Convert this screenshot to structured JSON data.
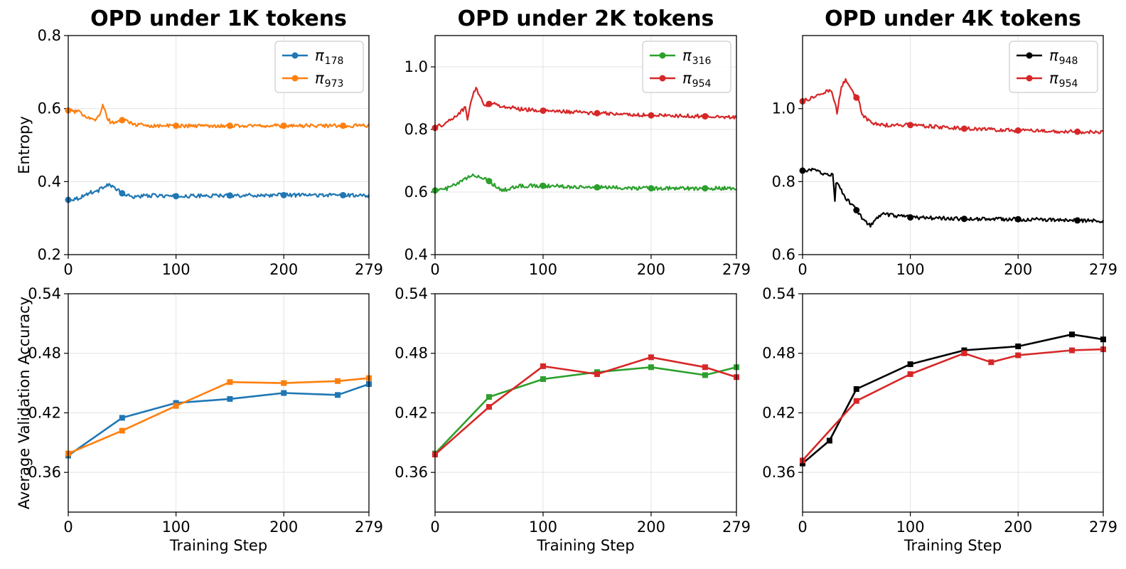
{
  "chart_data": [
    {
      "type": "line",
      "title": "OPD under 1K tokens",
      "xlabel": "",
      "ylabel": "Entropy",
      "xlim": [
        0,
        279
      ],
      "ylim": [
        0.2,
        0.8
      ],
      "xticks": [
        0,
        100,
        200,
        279
      ],
      "yticks": [
        "0.2",
        "0.4",
        "0.6",
        "0.8"
      ],
      "grid": true,
      "legend": "top-right",
      "noise": 0.005,
      "series": [
        {
          "name": "π",
          "sub": "178",
          "color": "#1f77b4",
          "x": [
            0,
            10,
            20,
            28,
            34,
            38,
            44,
            50,
            58,
            65,
            80,
            100,
            150,
            200,
            250,
            279
          ],
          "y": [
            0.35,
            0.355,
            0.37,
            0.375,
            0.39,
            0.392,
            0.38,
            0.368,
            0.358,
            0.36,
            0.362,
            0.36,
            0.362,
            0.363,
            0.363,
            0.362
          ],
          "markers_x": [
            0,
            50,
            100,
            150,
            200,
            255
          ]
        },
        {
          "name": "π",
          "sub": "973",
          "color": "#ff7f0e",
          "x": [
            0,
            10,
            20,
            26,
            30,
            32,
            36,
            40,
            46,
            52,
            58,
            65,
            80,
            100,
            150,
            200,
            250,
            279
          ],
          "y": [
            0.595,
            0.59,
            0.575,
            0.57,
            0.585,
            0.612,
            0.575,
            0.56,
            0.565,
            0.57,
            0.56,
            0.555,
            0.553,
            0.553,
            0.553,
            0.553,
            0.553,
            0.553
          ],
          "markers_x": [
            0,
            50,
            100,
            150,
            200,
            255
          ]
        }
      ]
    },
    {
      "type": "line",
      "title": "OPD under 2K tokens",
      "xlabel": "",
      "ylabel": "",
      "xlim": [
        0,
        279
      ],
      "ylim": [
        0.4,
        1.1
      ],
      "xticks": [
        0,
        100,
        200,
        279
      ],
      "yticks": [
        "0.4",
        "0.6",
        "0.8",
        "1.0"
      ],
      "grid": true,
      "legend": "top-right",
      "noise": 0.006,
      "series": [
        {
          "name": "π",
          "sub": "316",
          "color": "#2ca02c",
          "x": [
            0,
            10,
            20,
            30,
            36,
            42,
            50,
            56,
            62,
            68,
            80,
            100,
            150,
            200,
            250,
            279
          ],
          "y": [
            0.605,
            0.61,
            0.625,
            0.645,
            0.655,
            0.648,
            0.635,
            0.62,
            0.605,
            0.61,
            0.62,
            0.62,
            0.615,
            0.612,
            0.612,
            0.612
          ],
          "markers_x": [
            0,
            50,
            100,
            150,
            200,
            250
          ]
        },
        {
          "name": "π",
          "sub": "954",
          "color": "#d62728",
          "x": [
            0,
            10,
            20,
            28,
            30,
            34,
            38,
            42,
            46,
            52,
            60,
            80,
            100,
            150,
            200,
            250,
            279
          ],
          "y": [
            0.805,
            0.82,
            0.845,
            0.87,
            0.83,
            0.9,
            0.935,
            0.9,
            0.875,
            0.885,
            0.875,
            0.865,
            0.86,
            0.852,
            0.845,
            0.842,
            0.84
          ],
          "markers_x": [
            0,
            50,
            100,
            150,
            200,
            250
          ]
        }
      ]
    },
    {
      "type": "line",
      "title": "OPD under 4K tokens",
      "xlabel": "",
      "ylabel": "",
      "xlim": [
        0,
        279
      ],
      "ylim": [
        0.6,
        1.2
      ],
      "xticks": [
        0,
        100,
        200,
        279
      ],
      "yticks": [
        "0.6",
        "0.8",
        "1.0"
      ],
      "grid": true,
      "legend": "top-right",
      "noise": 0.005,
      "series": [
        {
          "name": "π",
          "sub": "948",
          "color": "#000000",
          "x": [
            0,
            10,
            20,
            28,
            30,
            31,
            34,
            40,
            46,
            52,
            58,
            63,
            68,
            74,
            85,
            100,
            150,
            200,
            250,
            279
          ],
          "y": [
            0.83,
            0.832,
            0.822,
            0.818,
            0.75,
            0.8,
            0.785,
            0.755,
            0.735,
            0.715,
            0.69,
            0.68,
            0.695,
            0.712,
            0.706,
            0.702,
            0.698,
            0.697,
            0.694,
            0.692
          ],
          "markers_x": [
            0,
            50,
            100,
            150,
            200,
            255
          ]
        },
        {
          "name": "π",
          "sub": "954",
          "color": "#d62728",
          "x": [
            0,
            10,
            20,
            26,
            30,
            32,
            36,
            40,
            44,
            48,
            52,
            56,
            62,
            70,
            80,
            100,
            150,
            200,
            250,
            279
          ],
          "y": [
            1.02,
            1.03,
            1.045,
            1.05,
            1.02,
            0.99,
            1.06,
            1.08,
            1.06,
            1.04,
            1.02,
            0.98,
            0.965,
            0.955,
            0.955,
            0.955,
            0.945,
            0.94,
            0.937,
            0.935
          ],
          "markers_x": [
            0,
            50,
            100,
            150,
            200,
            255
          ]
        }
      ]
    },
    {
      "type": "line",
      "title": "",
      "xlabel": "Training Step",
      "ylabel": "Average Validation Accuracy",
      "xlim": [
        0,
        279
      ],
      "ylim": [
        0.32,
        0.54
      ],
      "xticks": [
        0,
        100,
        200,
        279
      ],
      "yticks": [
        "0.36",
        "0.42",
        "0.48",
        "0.54"
      ],
      "grid": true,
      "legend": "none",
      "series": [
        {
          "name": "",
          "color": "#1f77b4",
          "x": [
            0,
            50,
            100,
            150,
            200,
            250,
            279
          ],
          "y": [
            0.377,
            0.415,
            0.43,
            0.434,
            0.44,
            0.438,
            0.449
          ]
        },
        {
          "name": "",
          "color": "#ff7f0e",
          "x": [
            0,
            50,
            100,
            150,
            200,
            250,
            279
          ],
          "y": [
            0.379,
            0.402,
            0.427,
            0.451,
            0.45,
            0.452,
            0.455
          ]
        }
      ]
    },
    {
      "type": "line",
      "title": "",
      "xlabel": "Training Step",
      "ylabel": "",
      "xlim": [
        0,
        279
      ],
      "ylim": [
        0.32,
        0.54
      ],
      "xticks": [
        0,
        100,
        200,
        279
      ],
      "yticks": [
        "0.36",
        "0.42",
        "0.48",
        "0.54"
      ],
      "grid": true,
      "legend": "none",
      "series": [
        {
          "name": "",
          "color": "#2ca02c",
          "x": [
            0,
            50,
            100,
            150,
            200,
            250,
            279
          ],
          "y": [
            0.379,
            0.436,
            0.454,
            0.461,
            0.466,
            0.458,
            0.466
          ]
        },
        {
          "name": "",
          "color": "#d62728",
          "x": [
            0,
            50,
            100,
            150,
            200,
            250,
            279
          ],
          "y": [
            0.378,
            0.426,
            0.467,
            0.459,
            0.476,
            0.466,
            0.456
          ]
        }
      ]
    },
    {
      "type": "line",
      "title": "",
      "xlabel": "Training Step",
      "ylabel": "",
      "xlim": [
        0,
        279
      ],
      "ylim": [
        0.32,
        0.54
      ],
      "xticks": [
        0,
        100,
        200,
        279
      ],
      "yticks": [
        "0.36",
        "0.42",
        "0.48",
        "0.54"
      ],
      "grid": true,
      "legend": "none",
      "series": [
        {
          "name": "",
          "color": "#000000",
          "x": [
            0,
            25,
            50,
            100,
            150,
            200,
            250,
            279
          ],
          "y": [
            0.369,
            0.392,
            0.444,
            0.469,
            0.483,
            0.487,
            0.499,
            0.494
          ]
        },
        {
          "name": "",
          "color": "#d62728",
          "x": [
            0,
            50,
            100,
            150,
            175,
            200,
            250,
            279
          ],
          "y": [
            0.372,
            0.432,
            0.459,
            0.48,
            0.471,
            0.478,
            0.483,
            0.484
          ]
        }
      ]
    }
  ]
}
